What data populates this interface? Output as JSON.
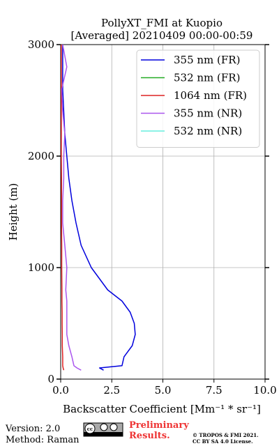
{
  "chart_data": {
    "type": "line",
    "title": "PollyXT_FMI at Kuopio",
    "subtitle": "[Averaged] 20210409 00:00-00:59",
    "x_label": "Backscatter Coefficient [Mm⁻¹ * sr⁻¹]",
    "y_label": "Height (m)",
    "y": [
      80,
      100,
      120,
      200,
      300,
      400,
      500,
      600,
      700,
      800,
      1000,
      1200,
      1400,
      1600,
      1800,
      2000,
      2200,
      2400,
      2600,
      2800,
      3000
    ],
    "series": [
      {
        "name": "355 nm (FR)",
        "color": "#0000dd",
        "values": [
          2.1,
          1.9,
          3.0,
          3.1,
          3.5,
          3.65,
          3.6,
          3.4,
          3.0,
          2.3,
          1.5,
          1.0,
          0.75,
          0.55,
          0.4,
          0.3,
          0.2,
          0.15,
          0.1,
          0.1,
          0.1
        ]
      },
      {
        "name": "532 nm (FR)",
        "color": "#22aa22",
        "values": [
          null,
          null,
          null,
          null,
          null,
          null,
          null,
          null,
          null,
          null,
          null,
          null,
          null,
          null,
          null,
          null,
          null,
          null,
          null,
          null,
          null
        ]
      },
      {
        "name": "1064 nm (FR)",
        "color": "#dd2222",
        "values": [
          0.15,
          0.12,
          0.1,
          0.1,
          0.08,
          0.08,
          0.07,
          0.07,
          0.06,
          0.06,
          0.05,
          0.05,
          0.04,
          0.04,
          0.04,
          0.03,
          0.03,
          0.03,
          0.03,
          0.03,
          0.03
        ]
      },
      {
        "name": "355 nm (NR)",
        "color": "#aa55ee",
        "values": [
          1.0,
          0.8,
          0.65,
          0.55,
          0.4,
          0.3,
          0.3,
          0.3,
          0.3,
          0.25,
          0.3,
          0.2,
          0.1,
          0.1,
          0.15,
          0.15,
          0.2,
          0.1,
          0.05,
          0.3,
          0.1
        ]
      },
      {
        "name": "532 nm (NR)",
        "color": "#66eedd",
        "values": [
          null,
          null,
          null,
          null,
          null,
          null,
          null,
          null,
          null,
          null,
          null,
          null,
          null,
          null,
          null,
          null,
          null,
          null,
          null,
          null,
          null
        ]
      }
    ],
    "xlim": [
      0,
      10
    ],
    "ylim": [
      0,
      3000
    ],
    "xticks": [
      {
        "value": 0,
        "label": "0.0"
      },
      2.5,
      {
        "value": 5,
        "label": "5.0"
      },
      7.5,
      {
        "value": 10,
        "label": "10.0"
      }
    ],
    "yticks": [
      0,
      1000,
      2000,
      3000
    ],
    "grid": true,
    "legend": "upper right",
    "annotations": {
      "version": "Version: 2.0",
      "method": "Method: Raman",
      "preliminary": "Preliminary",
      "results": "Results.",
      "copyright": "© TROPOS & FMI 2021.",
      "license": "CC BY SA 4.0 License."
    }
  }
}
